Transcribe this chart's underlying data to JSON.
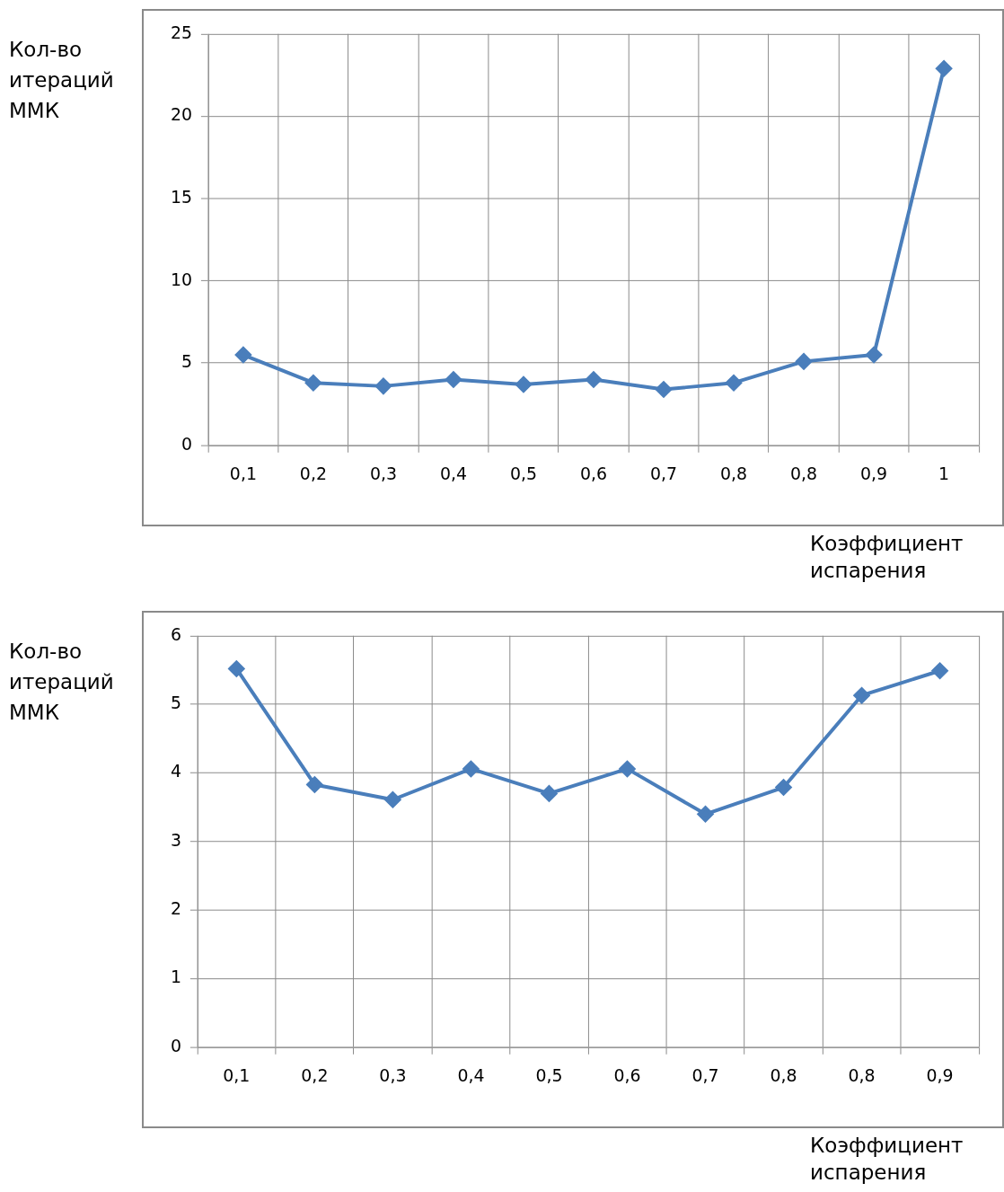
{
  "chart_data": [
    {
      "type": "line",
      "xlabel": "Коэффициент испарения",
      "ylabel": "Кол-во итераций ММК",
      "categories": [
        "0,1",
        "0,2",
        "0,3",
        "0,4",
        "0,5",
        "0,6",
        "0,7",
        "0,8",
        "0,8",
        "0,9",
        "1"
      ],
      "series": [
        {
          "color": "#4a7ebb",
          "values": [
            5.5,
            3.8,
            3.6,
            4.0,
            3.7,
            4.0,
            3.4,
            3.8,
            5.1,
            5.5,
            22.9
          ]
        }
      ],
      "ylim": [
        0,
        25
      ],
      "yticks": [
        0,
        5,
        10,
        15,
        20,
        25
      ],
      "grid": true,
      "legend": false,
      "marker": "diamond",
      "line_style": "solid"
    },
    {
      "type": "line",
      "xlabel": "Коэффициент испарения",
      "ylabel": "Кол-во итераций ММК",
      "categories": [
        "0,1",
        "0,2",
        "0,3",
        "0,4",
        "0,5",
        "0,6",
        "0,7",
        "0,8",
        "0,8",
        "0,9"
      ],
      "series": [
        {
          "color": "#4a7ebb",
          "values": [
            5.52,
            3.83,
            3.61,
            4.06,
            3.7,
            4.06,
            3.4,
            3.79,
            5.13,
            5.49
          ]
        }
      ],
      "ylim": [
        0,
        6
      ],
      "yticks": [
        0,
        1,
        2,
        3,
        4,
        5,
        6
      ],
      "grid": true,
      "legend": false,
      "marker": "diamond",
      "line_style": "solid"
    }
  ]
}
